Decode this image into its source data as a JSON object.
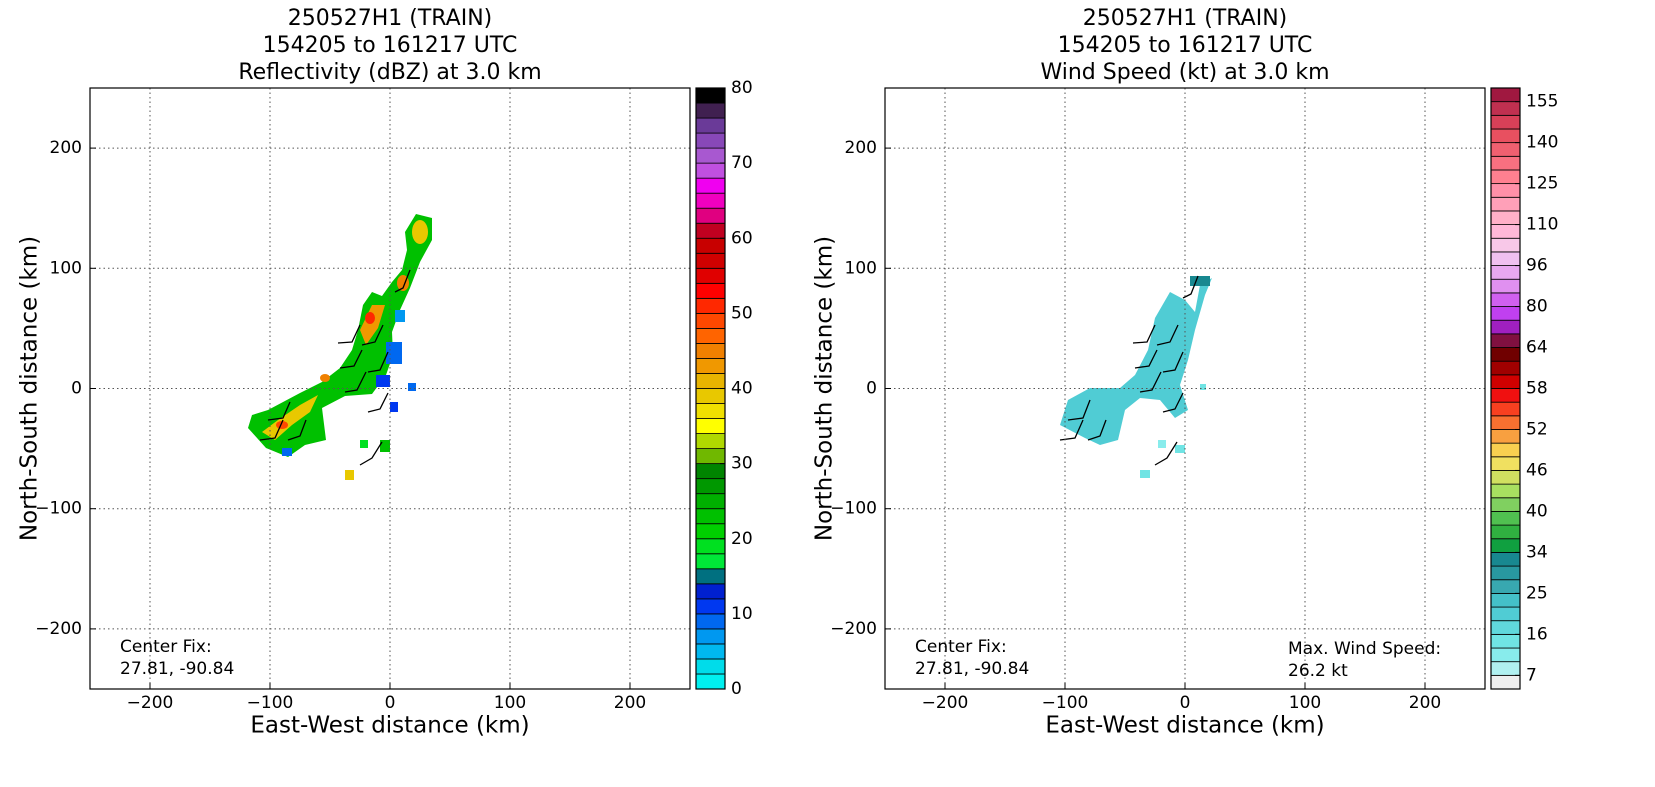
{
  "chart_data": [
    {
      "type": "heatmap",
      "title": [
        "250527H1 (TRAIN)",
        "154205 to 161217 UTC",
        "Reflectivity (dBZ) at 3.0 km"
      ],
      "xlabel": "East-West distance (km)",
      "ylabel": "North-South distance (km)",
      "xlim": [
        -250,
        250
      ],
      "ylim": [
        -250,
        250
      ],
      "xticks": [
        {
          "value": -200,
          "label": "−200"
        },
        {
          "value": -100,
          "label": "−100"
        },
        0,
        100,
        200
      ],
      "yticks": [
        {
          "value": -200,
          "label": "−200"
        },
        {
          "value": -100,
          "label": "−100"
        },
        0,
        100,
        200
      ],
      "grid": true,
      "levels": [
        0,
        2,
        4,
        6,
        8,
        10,
        12,
        14,
        16,
        18,
        20,
        22,
        24,
        26,
        28,
        30,
        32,
        34,
        36,
        38,
        40,
        42,
        44,
        46,
        48,
        50,
        52,
        54,
        56,
        58,
        60,
        62,
        64,
        66,
        68,
        70,
        72,
        74,
        76,
        78,
        80
      ],
      "colors": [
        "#00f0f0",
        "#00dcea",
        "#00b8f0",
        "#0098f0",
        "#0068f0",
        "#0038f0",
        "#0020d0",
        "#007080",
        "#00e838",
        "#00e020",
        "#00d000",
        "#00c000",
        "#00b000",
        "#009800",
        "#008400",
        "#70b800",
        "#b0d800",
        "#ffff00",
        "#f0e000",
        "#e8c800",
        "#e8b400",
        "#f09800",
        "#f08000",
        "#ff6400",
        "#ff4800",
        "#ff2800",
        "#ff0000",
        "#e00000",
        "#d00000",
        "#c80000",
        "#c00020",
        "#e00080",
        "#f000c0",
        "#f000f0",
        "#c050e0",
        "#a858d0",
        "#8848b8",
        "#6a3a98",
        "#402050",
        "#000000"
      ],
      "cticks": [
        0,
        10,
        20,
        30,
        40,
        50,
        60,
        70,
        80
      ],
      "center_fix": [
        "Center Fix:",
        "27.81, -90.84"
      ]
    },
    {
      "type": "heatmap",
      "title": [
        "250527H1 (TRAIN)",
        "154205 to 161217 UTC",
        "Wind Speed (kt) at 3.0 km"
      ],
      "xlabel": "East-West distance (km)",
      "ylabel": "North-South distance (km)",
      "xlim": [
        -250,
        250
      ],
      "ylim": [
        -250,
        250
      ],
      "xticks": [
        {
          "value": -200,
          "label": "−200"
        },
        {
          "value": -100,
          "label": "−100"
        },
        0,
        100,
        200
      ],
      "yticks": [
        {
          "value": -200,
          "label": "−200"
        },
        {
          "value": -100,
          "label": "−100"
        },
        0,
        100,
        200
      ],
      "grid": true,
      "levels": [
        0,
        7,
        10,
        13,
        16,
        19,
        22,
        25,
        28,
        31,
        34,
        36,
        38,
        40,
        42,
        44,
        46,
        48,
        50,
        52,
        54,
        56,
        58,
        60,
        62,
        64,
        69,
        75,
        80,
        85,
        91,
        96,
        101,
        105,
        110,
        115,
        120,
        125,
        130,
        135,
        140,
        145,
        150,
        155,
        160
      ],
      "colors": [
        "#eeeeee",
        "#b0f0f0",
        "#88ecec",
        "#70e4e4",
        "#60d8dc",
        "#50ccd4",
        "#44c0c8",
        "#38a8b0",
        "#2898a0",
        "#188890",
        "#10a040",
        "#30b040",
        "#50c050",
        "#80d060",
        "#a8e060",
        "#d0e060",
        "#f0e060",
        "#f8d050",
        "#f8a040",
        "#f87030",
        "#f84020",
        "#f01010",
        "#d00000",
        "#a00000",
        "#700000",
        "#801040",
        "#a020c0",
        "#c040f0",
        "#d060f0",
        "#e090f0",
        "#e8a8f0",
        "#f0c0f0",
        "#f8c8e8",
        "#ffb8d8",
        "#ffb0c8",
        "#ffa0b8",
        "#ff90a8",
        "#ff8090",
        "#f87080",
        "#f06070",
        "#e85060",
        "#d84058",
        "#c03050",
        "#a01840"
      ],
      "cticks": [
        7,
        16,
        25,
        34,
        40,
        46,
        52,
        58,
        64,
        80,
        96,
        110,
        125,
        140,
        155
      ],
      "center_fix": [
        "Center Fix:",
        "27.81, -90.84"
      ],
      "max_wind": [
        "Max. Wind Speed:",
        "26.2 kt"
      ]
    }
  ]
}
